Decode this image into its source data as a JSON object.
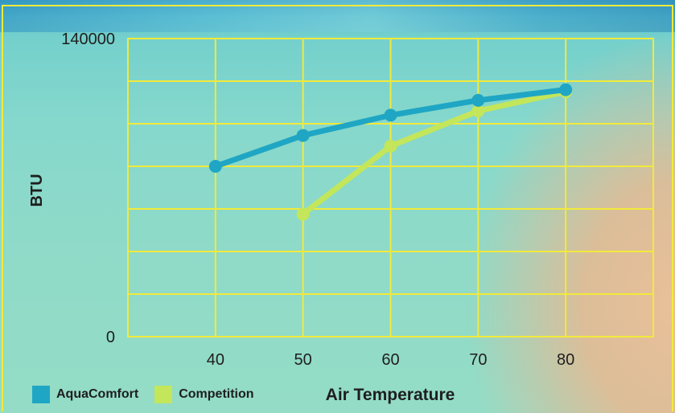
{
  "chart_data": {
    "type": "line",
    "x": [
      40,
      50,
      60,
      70,
      80
    ],
    "xlabel": "Air Temperature",
    "ylabel": "BTU",
    "xlim": [
      30,
      90
    ],
    "ylim": [
      0,
      140000
    ],
    "y_ticks": [
      "0",
      "140000"
    ],
    "x_ticks": [
      "40",
      "50",
      "60",
      "70",
      "80"
    ],
    "grid": true,
    "legend_position": "bottom-left",
    "series": [
      {
        "name": "AquaComfort",
        "color": "#1fa6c4",
        "values": [
          80000,
          94500,
          104000,
          111000,
          116000
        ]
      },
      {
        "name": "Competition",
        "color": "#c3e65a",
        "values": [
          null,
          57500,
          89500,
          106000,
          115000
        ]
      }
    ]
  }
}
